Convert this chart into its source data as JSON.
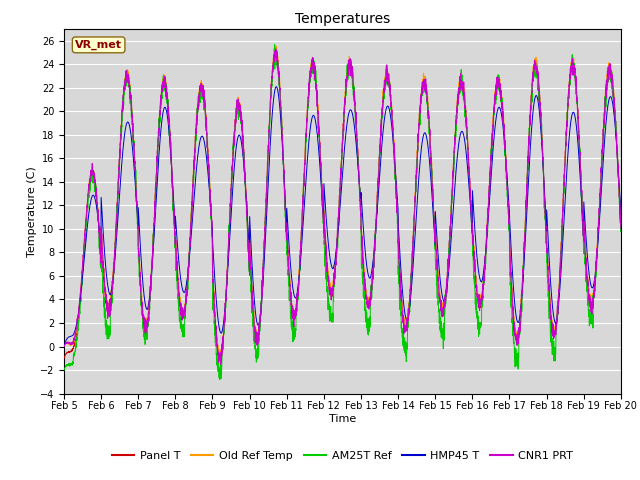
{
  "title": "Temperatures",
  "xlabel": "Time",
  "ylabel": "Temperature (C)",
  "ylim": [
    -4,
    27
  ],
  "yticks": [
    -4,
    -2,
    0,
    2,
    4,
    6,
    8,
    10,
    12,
    14,
    16,
    18,
    20,
    22,
    24,
    26
  ],
  "n_days": 15,
  "points_per_day": 288,
  "xtick_labels": [
    "Feb 5",
    "Feb 6",
    "Feb 7",
    "Feb 8",
    "Feb 9",
    "Feb 10",
    "Feb 11",
    "Feb 12",
    "Feb 13",
    "Feb 14",
    "Feb 15",
    "Feb 16",
    "Feb 17",
    "Feb 18",
    "Feb 19",
    "Feb 20"
  ],
  "annotation_text": "VR_met",
  "colors": {
    "Panel T": "#cc0000",
    "Old Ref Temp": "#ff9900",
    "AM25T Ref": "#00cc00",
    "HMP45 T": "#0000cc",
    "CNR1 PRT": "#cc00cc"
  },
  "fig_bg_color": "#ffffff",
  "plot_bg_color": "#d8d8d8",
  "grid_color": "#ffffff",
  "title_fontsize": 10,
  "axis_label_fontsize": 8,
  "tick_fontsize": 7,
  "legend_fontsize": 8
}
